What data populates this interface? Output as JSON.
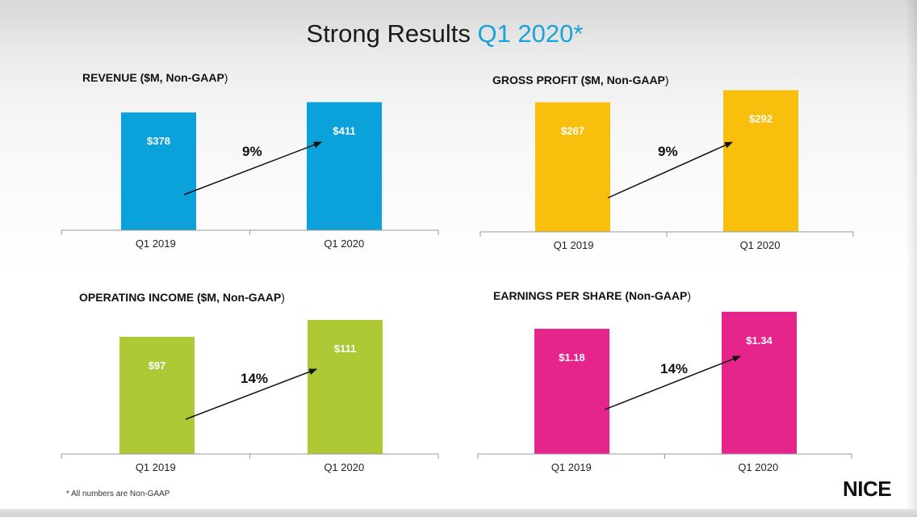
{
  "title": {
    "main": "Strong Results",
    "accent": "Q1 2020*"
  },
  "colors": {
    "accent": "#1aa3d9",
    "revenue": "#0ba2dc",
    "gross_profit": "#f8bf0c",
    "operating_income": "#adc935",
    "eps": "#e5248c"
  },
  "chart_data": [
    {
      "type": "bar",
      "title": "REVENUE ($M, Non-GAAP)",
      "categories": [
        "Q1 2019",
        "Q1 2020"
      ],
      "values": [
        378,
        411
      ],
      "value_labels": [
        "$378",
        "$411"
      ],
      "growth": "9%",
      "color": "#0ba2dc",
      "ylim": [
        0,
        420
      ],
      "grid": false
    },
    {
      "type": "bar",
      "title": "GROSS PROFIT ($M, Non-GAAP)",
      "categories": [
        "Q1 2019",
        "Q1 2020"
      ],
      "values": [
        267,
        292
      ],
      "value_labels": [
        "$267",
        "$292"
      ],
      "growth": "9%",
      "color": "#f8bf0c",
      "ylim": [
        0,
        298
      ],
      "grid": false
    },
    {
      "type": "bar",
      "title": "OPERATING INCOME ($M, Non-GAAP)",
      "categories": [
        "Q1 2019",
        "Q1 2020"
      ],
      "values": [
        97,
        111
      ],
      "value_labels": [
        "$97",
        "$111"
      ],
      "growth": "14%",
      "color": "#adc935",
      "ylim": [
        0,
        113
      ],
      "grid": false
    },
    {
      "type": "bar",
      "title": "EARNINGS PER SHARE (Non-GAAP)",
      "categories": [
        "Q1 2019",
        "Q1 2020"
      ],
      "values": [
        1.18,
        1.34
      ],
      "value_labels": [
        "$1.18",
        "$1.34"
      ],
      "growth": "14%",
      "color": "#e5248c",
      "ylim": [
        0,
        1.37
      ],
      "grid": false
    }
  ],
  "footnote": "* All numbers are Non-GAAP",
  "logo": {
    "text": "NICE",
    "icon": "nice-logo"
  }
}
